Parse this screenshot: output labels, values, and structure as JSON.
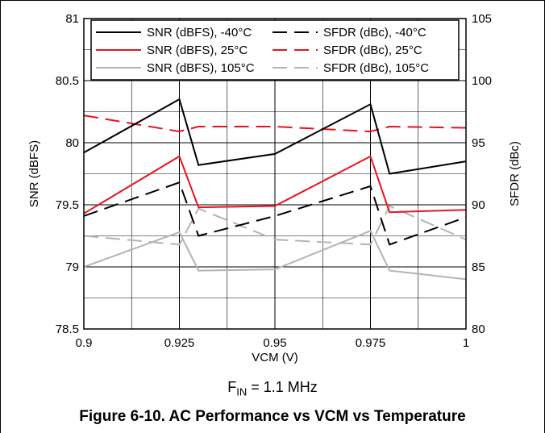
{
  "chart_data": {
    "type": "line",
    "xlabel": "VCM (V)",
    "ylabel_left": "SNR (dBFS)",
    "ylabel_right": "SFDR (dBc)",
    "x_ticks": [
      "0.9",
      "0.925",
      "0.95",
      "0.975",
      "1"
    ],
    "y_left_ticks": [
      "78.5",
      "79",
      "79.5",
      "80",
      "80.5",
      "81"
    ],
    "y_right_ticks": [
      "80",
      "85",
      "90",
      "95",
      "100",
      "105"
    ],
    "xlim": [
      0.9,
      1.0
    ],
    "ylim_left": [
      78.5,
      81
    ],
    "ylim_right": [
      80,
      105
    ],
    "grid": true,
    "legend_position": "top",
    "series": [
      {
        "name": "SNR (dBFS), -40°C",
        "axis": "left",
        "color": "#000000",
        "dash": "solid",
        "x": [
          0.9,
          0.925,
          0.93,
          0.95,
          0.975,
          0.98,
          1.0
        ],
        "y": [
          79.92,
          80.35,
          79.82,
          79.91,
          80.31,
          79.75,
          79.85
        ]
      },
      {
        "name": "SFDR (dBc), -40°C",
        "axis": "right",
        "color": "#000000",
        "dash": "dashed",
        "x": [
          0.9,
          0.925,
          0.93,
          0.95,
          0.975,
          0.98,
          1.0
        ],
        "y": [
          89.1,
          91.8,
          87.5,
          89.1,
          91.5,
          86.8,
          89.0
        ]
      },
      {
        "name": "SNR (dBFS), 25°C",
        "axis": "left",
        "color": "#e8141c",
        "dash": "solid",
        "x": [
          0.9,
          0.925,
          0.93,
          0.95,
          0.975,
          0.98,
          1.0
        ],
        "y": [
          79.43,
          79.89,
          79.48,
          79.49,
          79.89,
          79.44,
          79.46
        ]
      },
      {
        "name": "SFDR (dBc), 25°C",
        "axis": "right",
        "color": "#e8141c",
        "dash": "dashed",
        "x": [
          0.9,
          0.925,
          0.93,
          0.95,
          0.975,
          0.98,
          1.0
        ],
        "y": [
          97.2,
          95.9,
          96.3,
          96.3,
          95.9,
          96.3,
          96.2
        ]
      },
      {
        "name": "SNR (dBFS), 105°C",
        "axis": "left",
        "color": "#b4b4b4",
        "dash": "solid",
        "x": [
          0.9,
          0.925,
          0.93,
          0.95,
          0.975,
          0.98,
          1.0
        ],
        "y": [
          79.0,
          79.28,
          78.97,
          78.98,
          79.29,
          78.97,
          78.9
        ]
      },
      {
        "name": "SFDR (dBc), 105°C",
        "axis": "right",
        "color": "#b4b4b4",
        "dash": "dashed",
        "x": [
          0.9,
          0.925,
          0.93,
          0.95,
          0.975,
          0.98,
          1.0
        ],
        "y": [
          87.5,
          86.8,
          89.7,
          87.2,
          86.8,
          89.9,
          87.2
        ]
      }
    ]
  },
  "note": {
    "prefix": "F",
    "subscript": "IN",
    "suffix": " = 1.1 MHz"
  },
  "caption": "Figure 6-10. AC Performance vs VCM vs Temperature"
}
